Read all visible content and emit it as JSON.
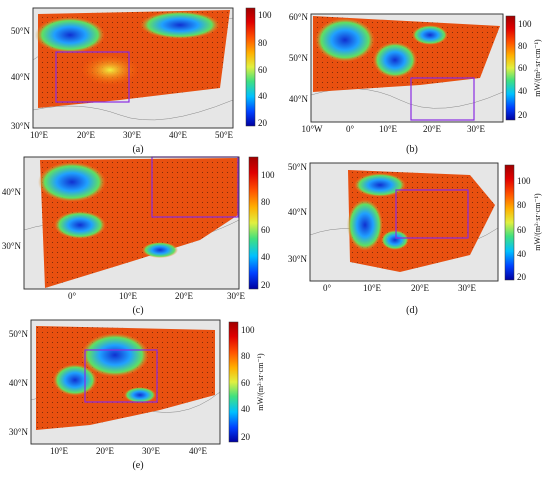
{
  "colorbar": {
    "unit_label": "mW/(m²·sr·cm⁻¹)",
    "ticks": [
      "100",
      "80",
      "60",
      "40",
      "20"
    ],
    "colors": [
      "#0000a0",
      "#0040ff",
      "#00c0ff",
      "#40e080",
      "#e0f040",
      "#ffb000",
      "#ff5000",
      "#e00000",
      "#a00000"
    ]
  },
  "panels": [
    {
      "id": "a",
      "caption": "(a)",
      "lat_labels": [
        "50°N",
        "40°N",
        "30°N"
      ],
      "lon_labels": [
        "10°E",
        "20°E",
        "30°E",
        "40°E",
        "50°E"
      ],
      "colorbar_ticks": [
        "100",
        "80",
        "60",
        "40",
        "20"
      ]
    },
    {
      "id": "b",
      "caption": "(b)",
      "lat_labels": [
        "60°N",
        "50°N",
        "40°N"
      ],
      "lon_labels": [
        "10°W",
        "0°",
        "10°E",
        "20°E",
        "30°E"
      ],
      "colorbar_ticks": [
        "100",
        "80",
        "60",
        "40",
        "20"
      ]
    },
    {
      "id": "c",
      "caption": "(c)",
      "lat_labels": [
        "40°N",
        "30°N"
      ],
      "lon_labels": [
        "0°",
        "10°E",
        "20°E",
        "30°E"
      ],
      "colorbar_ticks": [
        "100",
        "80",
        "60",
        "40",
        "20"
      ]
    },
    {
      "id": "d",
      "caption": "(d)",
      "lat_labels": [
        "50°N",
        "40°N",
        "30°N"
      ],
      "lon_labels": [
        "0°",
        "10°E",
        "20°E",
        "30°E"
      ],
      "colorbar_ticks": [
        "100",
        "80",
        "60",
        "40",
        "20"
      ]
    },
    {
      "id": "e",
      "caption": "(e)",
      "lat_labels": [
        "50°N",
        "40°N",
        "30°N"
      ],
      "lon_labels": [
        "10°E",
        "20°E",
        "30°E",
        "40°E"
      ],
      "colorbar_ticks": [
        "100",
        "80",
        "60",
        "40",
        "20"
      ]
    }
  ]
}
